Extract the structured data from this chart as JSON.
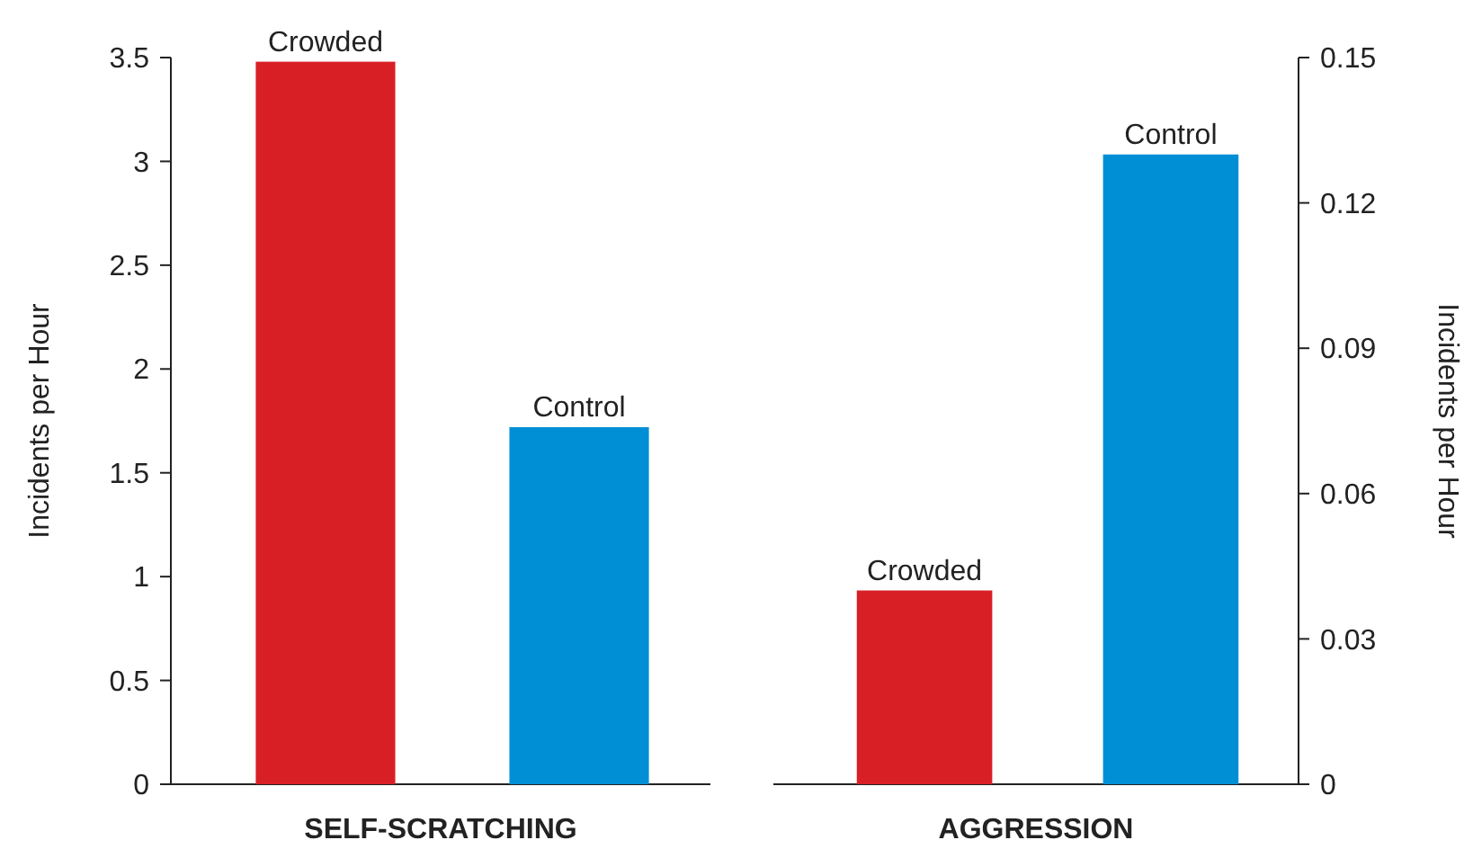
{
  "chart_data": [
    {
      "type": "bar",
      "categories": [
        "Crowded",
        "Control"
      ],
      "xlabel": "SELF-SCRATCHING",
      "ylabel": "Incidents per Hour",
      "ylim": [
        0,
        3.5
      ],
      "yticks": [
        0,
        0.5,
        1,
        1.5,
        2,
        2.5,
        3,
        3.5
      ],
      "series": [
        {
          "values": [
            3.48,
            1.72
          ],
          "colors": [
            "#d91f26",
            "#008fd5"
          ]
        }
      ]
    },
    {
      "type": "bar",
      "categories": [
        "Crowded",
        "Control"
      ],
      "xlabel": "AGGRESSION",
      "ylabel": "Incidents per Hour",
      "ylim": [
        0,
        0.15
      ],
      "yticks": [
        0,
        0.03,
        0.06,
        0.09,
        0.12,
        0.15
      ],
      "series": [
        {
          "values": [
            0.04,
            0.13
          ],
          "colors": [
            "#d91f26",
            "#008fd5"
          ]
        }
      ]
    }
  ]
}
